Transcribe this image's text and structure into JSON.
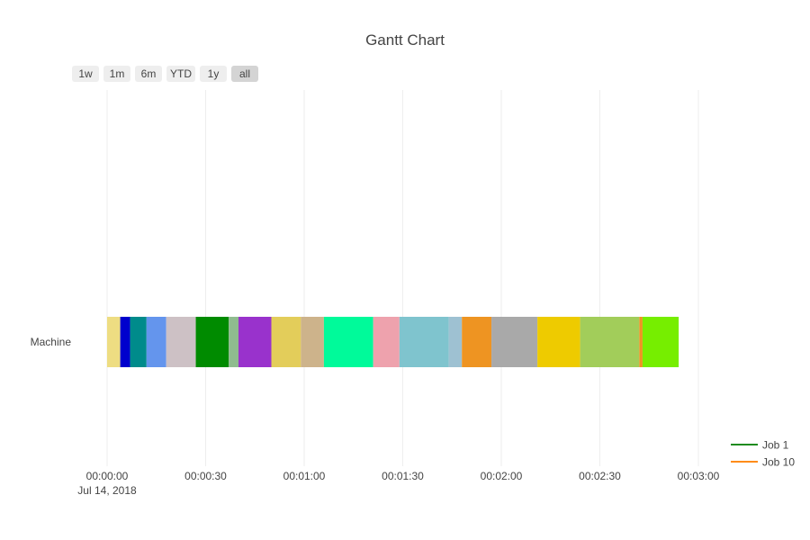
{
  "chart_data": {
    "type": "bar",
    "orientation": "horizontal",
    "title": "Gantt Chart",
    "y_category": "Machine",
    "xlim_seconds": [
      0,
      180
    ],
    "x_ticks": [
      {
        "value": 0,
        "label": "00:00:00",
        "sublabel": "Jul 14, 2018"
      },
      {
        "value": 30,
        "label": "00:00:30",
        "sublabel": ""
      },
      {
        "value": 60,
        "label": "00:01:00",
        "sublabel": ""
      },
      {
        "value": 90,
        "label": "00:01:30",
        "sublabel": ""
      },
      {
        "value": 120,
        "label": "00:02:00",
        "sublabel": ""
      },
      {
        "value": 150,
        "label": "00:02:30",
        "sublabel": ""
      },
      {
        "value": 180,
        "label": "00:03:00",
        "sublabel": ""
      }
    ],
    "range_buttons": [
      {
        "label": "1w",
        "active": false
      },
      {
        "label": "1m",
        "active": false
      },
      {
        "label": "6m",
        "active": false
      },
      {
        "label": "YTD",
        "active": false
      },
      {
        "label": "1y",
        "active": false
      },
      {
        "label": "all",
        "active": true
      }
    ],
    "segments": [
      {
        "start": 0,
        "end": 4,
        "color": "#EEDD82"
      },
      {
        "start": 4,
        "end": 7,
        "color": "#0000CD"
      },
      {
        "start": 7,
        "end": 12,
        "color": "#008B8B"
      },
      {
        "start": 12,
        "end": 18,
        "color": "#6495ED"
      },
      {
        "start": 18,
        "end": 27,
        "color": "#CDC1C5"
      },
      {
        "start": 27,
        "end": 37,
        "color": "#008B00"
      },
      {
        "start": 37,
        "end": 40,
        "color": "#8FBC8F"
      },
      {
        "start": 40,
        "end": 50,
        "color": "#9932CC"
      },
      {
        "start": 50,
        "end": 59,
        "color": "#E3CD5A"
      },
      {
        "start": 59,
        "end": 66,
        "color": "#CDB38B"
      },
      {
        "start": 66,
        "end": 81,
        "color": "#00FA9A"
      },
      {
        "start": 81,
        "end": 89,
        "color": "#EEA2AD"
      },
      {
        "start": 89,
        "end": 104,
        "color": "#7FC4CE"
      },
      {
        "start": 104,
        "end": 108,
        "color": "#9EC1D2"
      },
      {
        "start": 108,
        "end": 117,
        "color": "#EE9422"
      },
      {
        "start": 117,
        "end": 131,
        "color": "#A9A9A9"
      },
      {
        "start": 131,
        "end": 144,
        "color": "#EECB00"
      },
      {
        "start": 144,
        "end": 162,
        "color": "#A2CD5A"
      },
      {
        "start": 162,
        "end": 163,
        "color": "#EE9422"
      },
      {
        "start": 163,
        "end": 174,
        "color": "#76EE00"
      }
    ],
    "legend": {
      "placement": "bottom-right",
      "entries": [
        {
          "name": "Job 1",
          "color": "#1f8b1f"
        },
        {
          "name": "Job 10",
          "color": "#ff8c1a"
        }
      ]
    },
    "grid": true
  }
}
